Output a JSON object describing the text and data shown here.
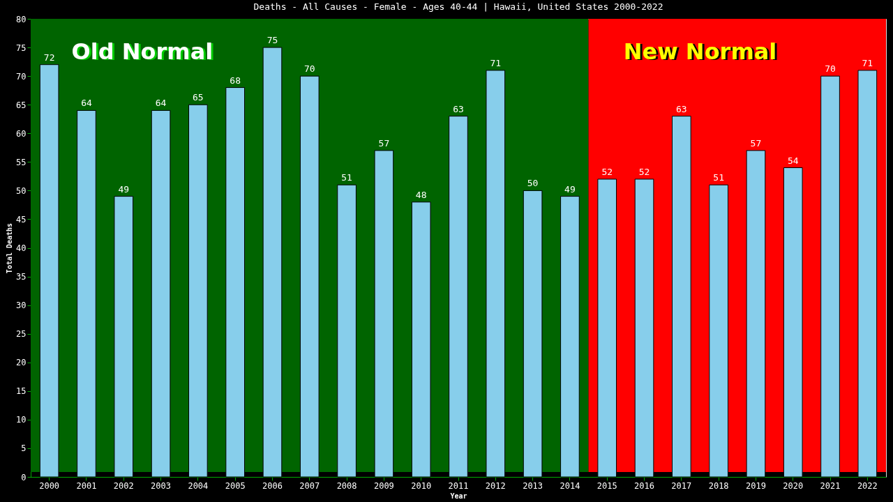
{
  "chart_data": {
    "type": "bar",
    "title": "Deaths - All Causes - Female - Ages 40-44 | Hawaii, United States 2000-2022",
    "xlabel": "Year",
    "ylabel": "Total Deaths",
    "categories": [
      "2000",
      "2001",
      "2002",
      "2003",
      "2004",
      "2005",
      "2006",
      "2007",
      "2008",
      "2009",
      "2010",
      "2011",
      "2012",
      "2013",
      "2014",
      "2015",
      "2016",
      "2017",
      "2018",
      "2019",
      "2020",
      "2021",
      "2022"
    ],
    "values": [
      72,
      64,
      49,
      64,
      65,
      68,
      75,
      70,
      51,
      57,
      48,
      63,
      71,
      50,
      49,
      52,
      52,
      63,
      51,
      57,
      54,
      70,
      71
    ],
    "color": "#87ceeb",
    "ylim": [
      0,
      80
    ],
    "yticks": [
      0,
      5,
      10,
      15,
      20,
      25,
      30,
      35,
      40,
      45,
      50,
      55,
      60,
      65,
      70,
      75,
      80
    ],
    "grid": false,
    "data_labels": true,
    "bands": [
      {
        "axis": "x",
        "from": "2000",
        "to": "2014",
        "label": "Old Normal",
        "color": "#006400"
      },
      {
        "axis": "x",
        "from": "2015",
        "to": "2022",
        "label": "New Normal",
        "color": "#ff0000"
      }
    ]
  }
}
